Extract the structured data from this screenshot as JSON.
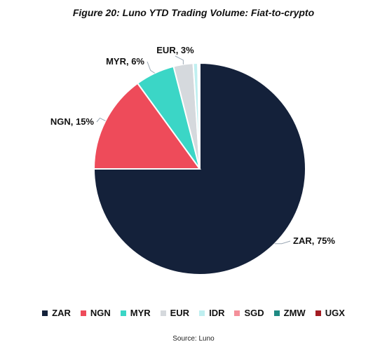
{
  "chart_data": {
    "type": "pie",
    "title": "Figure 20: Luno YTD Trading Volume: Fiat-to-crypto",
    "source": "Source: Luno",
    "legend_position": "bottom",
    "slices": [
      {
        "name": "ZAR",
        "value": 75,
        "label": "ZAR, 75%",
        "color": "#14213a"
      },
      {
        "name": "NGN",
        "value": 15,
        "label": "NGN, 15%",
        "color": "#ee4b5a"
      },
      {
        "name": "MYR",
        "value": 6,
        "label": "MYR, 6%",
        "color": "#3bd6c6"
      },
      {
        "name": "EUR",
        "value": 3,
        "label": "EUR, 3%",
        "color": "#d5d9dd"
      },
      {
        "name": "IDR",
        "value": 0.7,
        "label": "",
        "color": "#bfeff0"
      },
      {
        "name": "SGD",
        "value": 0.15,
        "label": "",
        "color": "#f4909a"
      },
      {
        "name": "ZMW",
        "value": 0.1,
        "label": "",
        "color": "#1f8a83"
      },
      {
        "name": "UGX",
        "value": 0.05,
        "label": "",
        "color": "#a31c22"
      }
    ]
  }
}
